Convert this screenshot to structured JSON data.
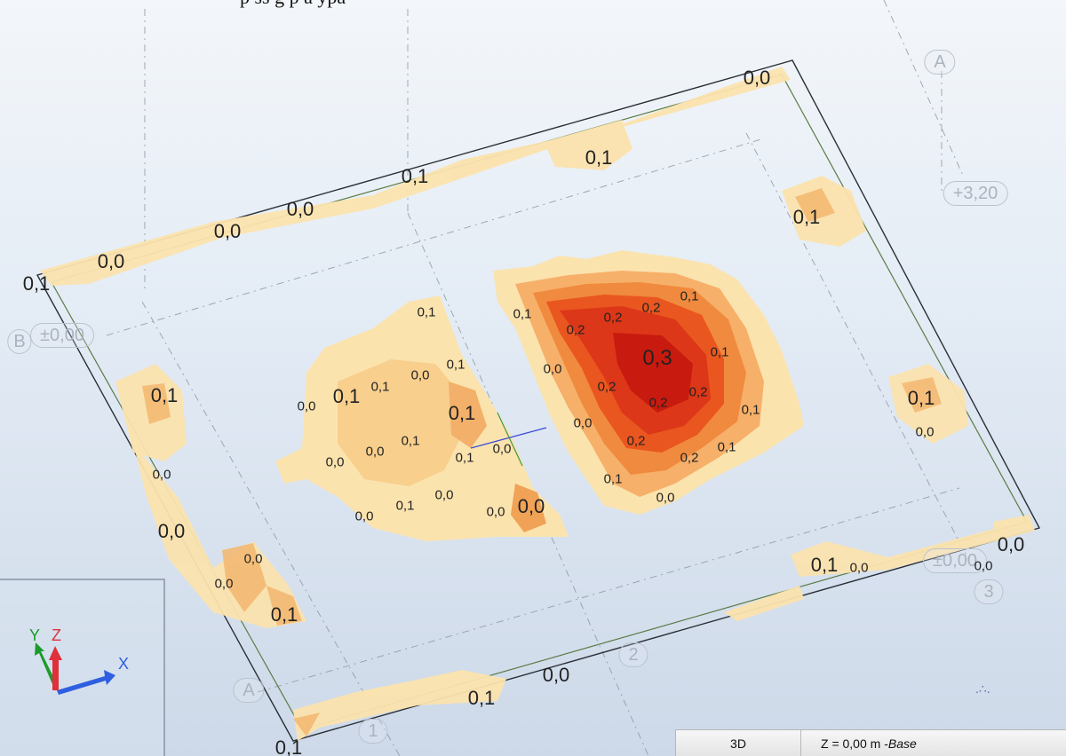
{
  "caption": "p    ss   g  p              a    ypa",
  "viewport": {
    "values_big": [
      "0,0",
      "0,1",
      "0,1",
      "0,1",
      "0,0",
      "0,0",
      "0,0",
      "0,1",
      "0,1",
      "0,1",
      "0,1",
      "0,0",
      "0,1",
      "0,1",
      "0,0",
      "0,1",
      "0,0",
      "0,1",
      "0,1",
      "0,3",
      "0,0"
    ],
    "values_small": [
      "0,1",
      "0,1",
      "0,0",
      "0,1",
      "0,0",
      "0,0",
      "0,0",
      "0,1",
      "0,1",
      "0,0",
      "0,0",
      "0,1",
      "0,0",
      "0,0",
      "0,0",
      "0,0",
      "0,0",
      "0,1",
      "0,2",
      "0,2",
      "0,2",
      "0,1",
      "0,1",
      "0,0",
      "0,2",
      "0,2",
      "0,2",
      "0,1",
      "0,0",
      "0,2",
      "0,2",
      "0,1",
      "0,1",
      "0,0",
      "0,0",
      "0,0",
      "0,0"
    ],
    "grid_labels": [
      "A",
      "+3,20",
      "B",
      "±0,00",
      "±0,00",
      "3",
      "2",
      "A",
      "1"
    ]
  },
  "axes": {
    "x": "X",
    "y": "Y",
    "z": "Z",
    "colors": {
      "x": "#2f5fe0",
      "y": "#1c9a2a",
      "z": "#e0303a"
    }
  },
  "statusbar": {
    "view": "3D",
    "level_prefix": "Z = 0,00 m - ",
    "level_name": "Base"
  },
  "colors": {
    "low": "#fbe7b8",
    "mid": "#f6b36a",
    "high": "#e8341c",
    "peak": "#c81a0e"
  }
}
